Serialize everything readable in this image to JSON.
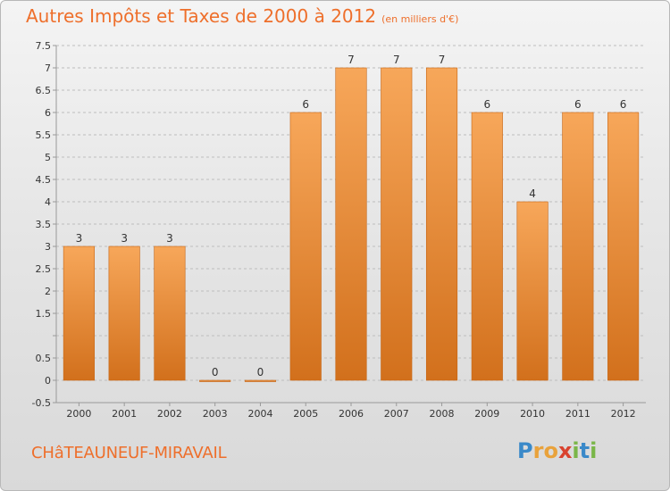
{
  "header": {
    "title": "Autres Impôts et Taxes de 2000 à 2012",
    "unit": "(en milliers d'€)"
  },
  "footer": {
    "commune": "CHâTEAUNEUF-MIRAVAIL",
    "logo": [
      "P",
      "r",
      "o",
      "x",
      "i",
      "t",
      "i"
    ],
    "logo_colors": [
      "#3a89c9",
      "#e9a23b",
      "#e9a23b",
      "#d9432f",
      "#7ab648",
      "#3a89c9",
      "#7ab648"
    ]
  },
  "colors": {
    "bar_top": "#f7a75a",
    "bar_bottom": "#d2701c",
    "bar_edge": "#c66514",
    "grid": "#bdbdbd",
    "axis": "#999999",
    "text": "#333333"
  },
  "chart_data": {
    "type": "bar",
    "title": "Autres Impôts et Taxes de 2000 à 2012",
    "subtitle": "(en milliers d'€)",
    "xlabel": "",
    "ylabel": "",
    "categories": [
      "2000",
      "2001",
      "2002",
      "2003",
      "2004",
      "2005",
      "2006",
      "2007",
      "2008",
      "2009",
      "2010",
      "2011",
      "2012"
    ],
    "values": [
      3,
      3,
      3,
      0,
      0,
      6,
      7,
      7,
      7,
      6,
      4,
      6,
      6
    ],
    "data_labels": [
      "3",
      "3",
      "3",
      "0",
      "0",
      "6",
      "7",
      "7",
      "7",
      "6",
      "4",
      "6",
      "6"
    ],
    "ylim": [
      -0.5,
      7.5
    ],
    "yticks": [
      -0.5,
      0,
      0.5,
      1,
      1.5,
      2,
      2.5,
      3,
      3.5,
      4,
      4.5,
      5,
      5.5,
      6,
      6.5,
      7,
      7.5
    ],
    "ytick_labels": [
      "-0.5",
      "0",
      "0.5",
      "",
      "1.5",
      "2",
      "2.5",
      "3",
      "3.5",
      "4",
      "4.5",
      "5",
      "5.5",
      "6",
      "6.5",
      "7",
      "7.5"
    ],
    "grid": true
  }
}
